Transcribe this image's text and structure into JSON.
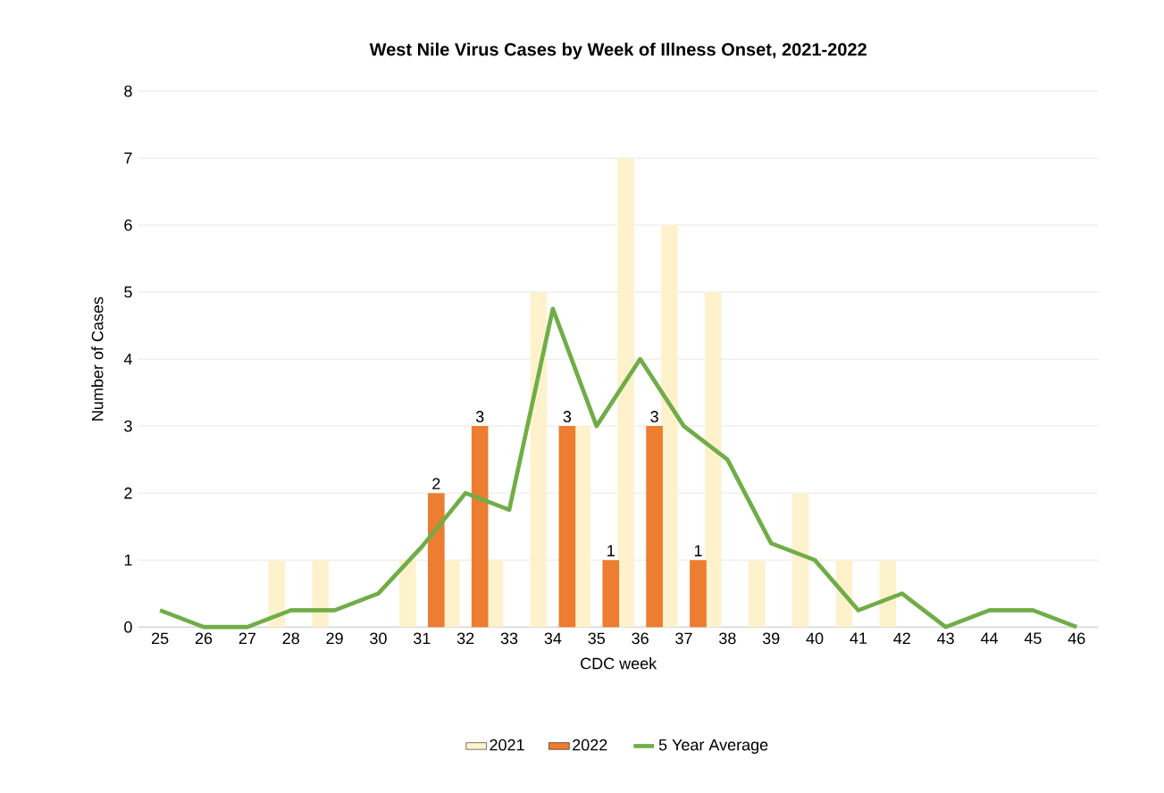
{
  "chart_data": {
    "type": "bar",
    "title": "West Nile Virus Cases by Week of Illness Onset, 2021-2022",
    "xlabel": "CDC week",
    "ylabel": "Number of Cases",
    "categories": [
      "25",
      "26",
      "27",
      "28",
      "29",
      "30",
      "31",
      "32",
      "33",
      "34",
      "35",
      "36",
      "37",
      "38",
      "39",
      "40",
      "41",
      "42",
      "43",
      "44",
      "45",
      "46"
    ],
    "series": [
      {
        "name": "2021",
        "color": "#fef2cc",
        "values": [
          0,
          0,
          0,
          1,
          1,
          0,
          1,
          1,
          1,
          5,
          3,
          7,
          6,
          5,
          1,
          2,
          1,
          1,
          0,
          0,
          0,
          0
        ]
      },
      {
        "name": "2022",
        "color": "#ed7d31",
        "values": [
          0,
          0,
          0,
          0,
          0,
          0,
          2,
          3,
          0,
          3,
          1,
          3,
          1,
          0,
          0,
          0,
          0,
          0,
          0,
          0,
          0,
          0
        ],
        "value_labels": [
          null,
          null,
          null,
          null,
          null,
          null,
          "2",
          "3",
          null,
          "3",
          "1",
          "3",
          "1",
          null,
          null,
          null,
          null,
          null,
          null,
          null,
          null,
          null
        ]
      },
      {
        "name": "5 Year Average",
        "type": "line",
        "color": "#70ad47",
        "values": [
          0.25,
          0,
          0,
          0.25,
          0.25,
          0.5,
          1.2,
          2,
          1.75,
          4.75,
          3,
          4,
          3,
          2.5,
          1.25,
          1,
          0.25,
          0.5,
          0,
          0.25,
          0.25,
          0
        ]
      }
    ],
    "ylim": [
      0,
      8
    ],
    "yticks": [
      0,
      1,
      2,
      3,
      4,
      5,
      6,
      7,
      8
    ],
    "grid": "y",
    "legend": "bottom"
  }
}
